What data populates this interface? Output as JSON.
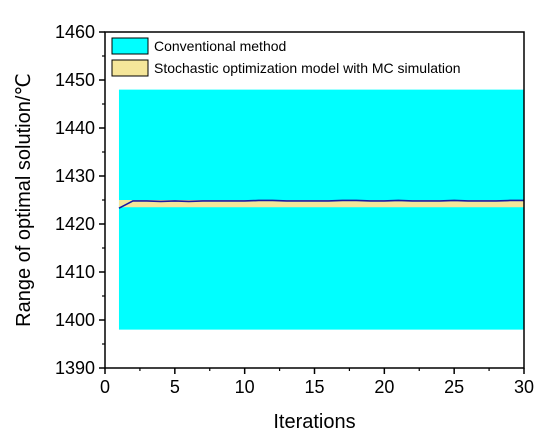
{
  "chart_data": {
    "type": "area",
    "title": "",
    "xlabel": "Iterations",
    "ylabel": "Range of optimal solution/℃",
    "xlim": [
      0,
      30
    ],
    "ylim": [
      1390,
      1460
    ],
    "xticks": [
      0,
      5,
      10,
      15,
      20,
      25,
      30
    ],
    "yticks": [
      1390,
      1400,
      1410,
      1420,
      1430,
      1440,
      1450,
      1460
    ],
    "grid": false,
    "legend_position": "top-left",
    "series": [
      {
        "name": "Conventional method",
        "kind": "band",
        "color": "#00ffff",
        "x": [
          1,
          30
        ],
        "lower": [
          1398,
          1398
        ],
        "upper": [
          1448,
          1448
        ]
      },
      {
        "name": "Stochastic optimization model with MC simulation",
        "kind": "band",
        "color": "#f5e69a",
        "x": [
          1,
          30
        ],
        "lower": [
          1423.5,
          1423.5
        ],
        "upper": [
          1425,
          1425
        ]
      },
      {
        "name": "",
        "kind": "line",
        "color": "#1a1aa0",
        "x": [
          1,
          2,
          3,
          4,
          5,
          6,
          7,
          8,
          9,
          10,
          11,
          12,
          13,
          14,
          15,
          16,
          17,
          18,
          19,
          20,
          21,
          22,
          23,
          24,
          25,
          26,
          27,
          28,
          29,
          30
        ],
        "values": [
          1423.3,
          1424.8,
          1424.8,
          1424.7,
          1424.8,
          1424.7,
          1424.8,
          1424.8,
          1424.8,
          1424.8,
          1424.9,
          1424.9,
          1424.8,
          1424.8,
          1424.8,
          1424.8,
          1424.9,
          1424.9,
          1424.8,
          1424.8,
          1424.9,
          1424.8,
          1424.8,
          1424.8,
          1424.9,
          1424.8,
          1424.8,
          1424.8,
          1424.9,
          1424.9
        ]
      }
    ]
  }
}
